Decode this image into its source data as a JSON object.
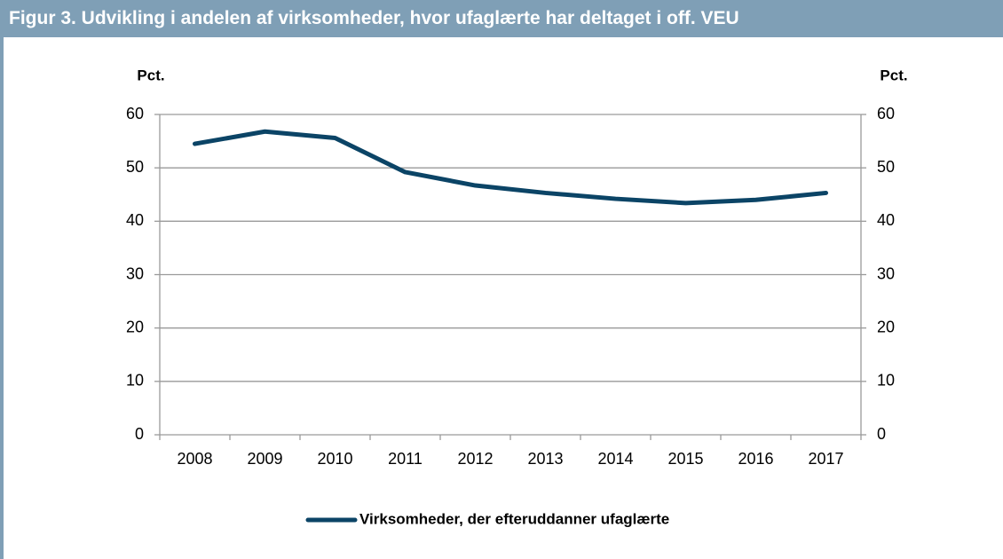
{
  "chart_data": {
    "type": "line",
    "title": "Figur 3. Udvikling i andelen af virksomheder, hvor ufaglærte har deltaget i off. VEU",
    "ylabel": "Pct.",
    "y2label": "Pct.",
    "categories": [
      "2008",
      "2009",
      "2010",
      "2011",
      "2012",
      "2013",
      "2014",
      "2015",
      "2016",
      "2017"
    ],
    "series": [
      {
        "name": "Virksomheder, der efteruddanner ufaglærte",
        "color": "#0b4466",
        "values": [
          54.5,
          56.8,
          55.6,
          49.2,
          46.7,
          45.3,
          44.2,
          43.4,
          44.0,
          45.3
        ]
      }
    ],
    "ylim": [
      0,
      60
    ],
    "yticks": [
      0,
      10,
      20,
      30,
      40,
      50,
      60
    ],
    "y2lim": [
      0,
      60
    ],
    "y2ticks": [
      0,
      10,
      20,
      30,
      40,
      50,
      60
    ],
    "grid": true,
    "legend": "bottom"
  }
}
